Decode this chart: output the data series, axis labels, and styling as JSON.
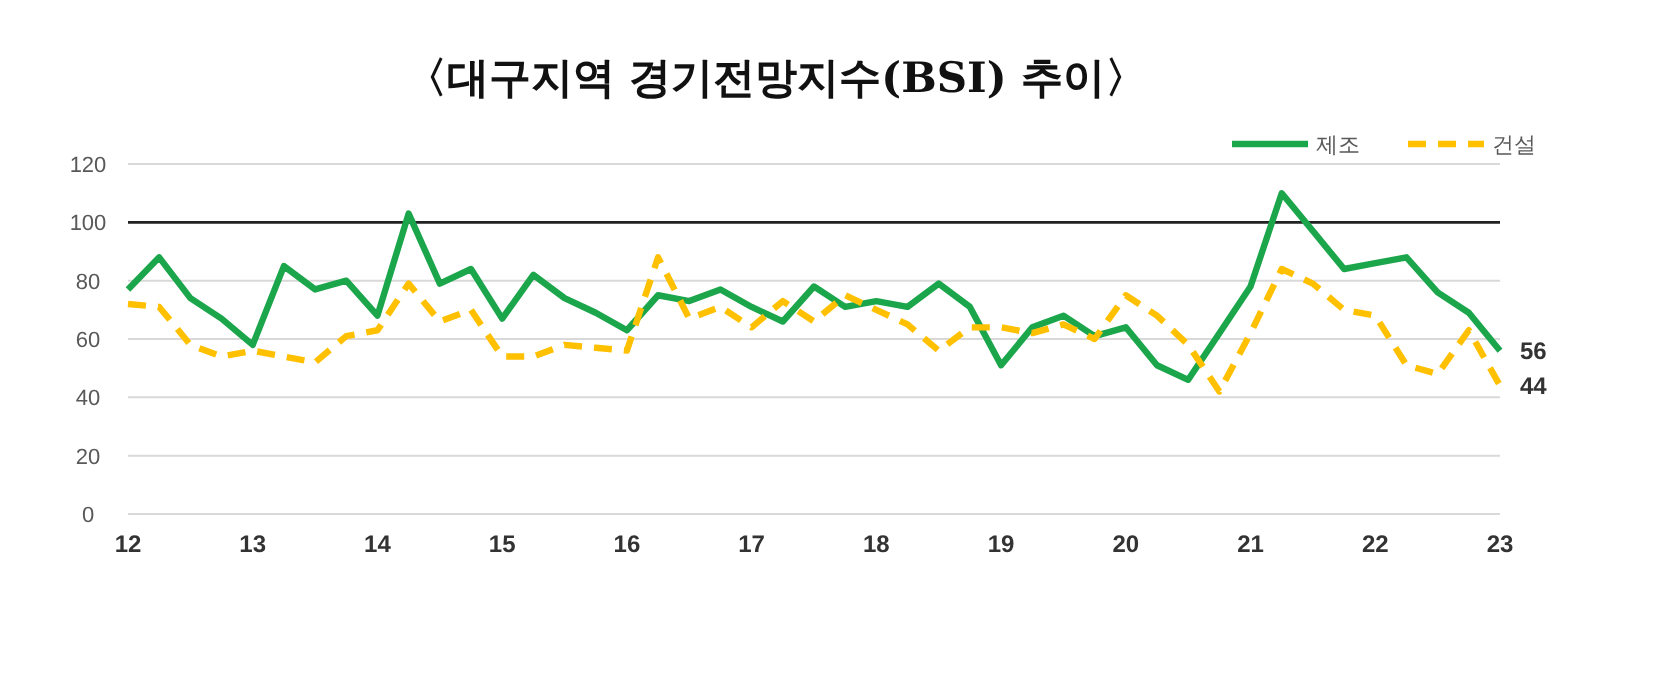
{
  "chart_data": {
    "type": "line",
    "title": "〈대구지역 경기전망지수(BSI) 추이〉",
    "x": [
      12,
      12.25,
      12.5,
      12.75,
      13,
      13.25,
      13.5,
      13.75,
      14,
      14.25,
      14.5,
      14.75,
      15,
      15.25,
      15.5,
      15.75,
      16,
      16.25,
      16.5,
      16.75,
      17,
      17.25,
      17.5,
      17.75,
      18,
      18.25,
      18.5,
      18.75,
      19,
      19.25,
      19.5,
      19.75,
      20,
      20.25,
      20.5,
      20.75,
      21,
      21.25,
      21.5,
      21.75,
      22,
      22.25,
      22.5,
      22.75,
      23
    ],
    "series": [
      {
        "name": "제조",
        "color": "#1ca64c",
        "line_style": "solid",
        "values": [
          77,
          88,
          74,
          67,
          58,
          85,
          77,
          80,
          68,
          103,
          79,
          84,
          67,
          82,
          74,
          69,
          63,
          75,
          73,
          77,
          71,
          66,
          78,
          71,
          73,
          71,
          79,
          71,
          51,
          64,
          68,
          61,
          64,
          51,
          46,
          62,
          78,
          110,
          97,
          84,
          86,
          88,
          76,
          69,
          56
        ],
        "value_labels": [
          null,
          null,
          null,
          null,
          null,
          null,
          null,
          null,
          null,
          null,
          null,
          null,
          null,
          null,
          null,
          null,
          null,
          null,
          null,
          null,
          null,
          null,
          null,
          null,
          null,
          null,
          null,
          null,
          null,
          null,
          null,
          null,
          null,
          null,
          null,
          null,
          null,
          null,
          null,
          null,
          null,
          null,
          null,
          null,
          "56"
        ]
      },
      {
        "name": "건설",
        "color": "#ffc000",
        "line_style": "dashed",
        "values": [
          72,
          71,
          58,
          54,
          56,
          54,
          52,
          61,
          63,
          79,
          66,
          70,
          54,
          54,
          58,
          57,
          56,
          88,
          67,
          71,
          64,
          73,
          66,
          75,
          70,
          65,
          56,
          64,
          64,
          62,
          65,
          60,
          75,
          68,
          58,
          42,
          62,
          84,
          79,
          70,
          68,
          51,
          48,
          63,
          44
        ],
        "value_labels": [
          null,
          null,
          null,
          null,
          null,
          null,
          null,
          null,
          null,
          null,
          null,
          null,
          null,
          null,
          null,
          null,
          null,
          null,
          null,
          null,
          null,
          null,
          null,
          null,
          null,
          null,
          null,
          null,
          null,
          null,
          null,
          null,
          null,
          null,
          null,
          null,
          null,
          null,
          null,
          null,
          null,
          null,
          null,
          null,
          "44"
        ]
      }
    ],
    "xlim": [
      12,
      23
    ],
    "xticks": [
      12,
      13,
      14,
      15,
      16,
      17,
      18,
      19,
      20,
      21,
      22,
      23
    ],
    "ylim": [
      0,
      120
    ],
    "yticks": [
      0,
      20,
      40,
      60,
      80,
      100,
      120
    ],
    "grid": "y",
    "legend": "top right",
    "ref_lines": [
      {
        "axis": "y",
        "value": 100,
        "color": "#222222"
      }
    ]
  }
}
